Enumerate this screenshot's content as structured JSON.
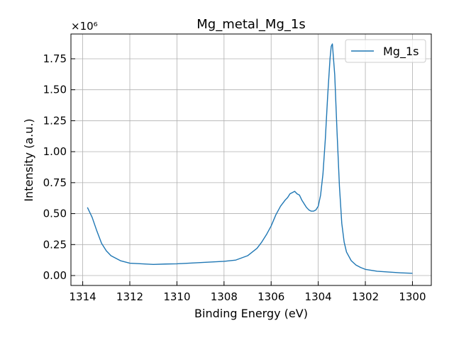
{
  "chart_data": {
    "type": "line",
    "title": "Mg_metal_Mg_1s",
    "xlabel": "Binding Energy (eV)",
    "ylabel": "Intensity (a.u.)",
    "y_multiplier_label": "×10⁶",
    "xlim": [
      1314.5,
      1299.2
    ],
    "ylim": [
      -0.08,
      1.95
    ],
    "x_reversed": true,
    "x_ticks": [
      1314,
      1312,
      1310,
      1308,
      1306,
      1304,
      1302,
      1300
    ],
    "y_ticks": [
      0.0,
      0.25,
      0.5,
      0.75,
      1.0,
      1.25,
      1.5,
      1.75
    ],
    "y_tick_labels": [
      "0.00",
      "0.25",
      "0.50",
      "0.75",
      "1.00",
      "1.25",
      "1.50",
      "1.75"
    ],
    "grid": true,
    "legend_position": "top-right",
    "series": [
      {
        "name": "Mg_1s",
        "color": "#1f77b4",
        "x": [
          1313.8,
          1313.6,
          1313.4,
          1313.2,
          1313.0,
          1312.8,
          1312.6,
          1312.4,
          1312.2,
          1312.0,
          1311.5,
          1311.0,
          1310.5,
          1310.0,
          1309.5,
          1309.0,
          1308.5,
          1308.0,
          1307.5,
          1307.0,
          1306.8,
          1306.6,
          1306.4,
          1306.2,
          1306.0,
          1305.8,
          1305.6,
          1305.4,
          1305.3,
          1305.2,
          1305.1,
          1305.0,
          1304.9,
          1304.8,
          1304.7,
          1304.6,
          1304.5,
          1304.4,
          1304.3,
          1304.2,
          1304.1,
          1304.0,
          1303.9,
          1303.8,
          1303.7,
          1303.6,
          1303.5,
          1303.45,
          1303.4,
          1303.3,
          1303.2,
          1303.1,
          1303.0,
          1302.9,
          1302.8,
          1302.6,
          1302.4,
          1302.2,
          1302.0,
          1301.5,
          1301.0,
          1300.5,
          1300.0
        ],
        "y": [
          0.55,
          0.47,
          0.36,
          0.26,
          0.2,
          0.16,
          0.14,
          0.12,
          0.11,
          0.1,
          0.095,
          0.09,
          0.093,
          0.095,
          0.1,
          0.105,
          0.11,
          0.115,
          0.125,
          0.16,
          0.19,
          0.22,
          0.27,
          0.33,
          0.4,
          0.49,
          0.56,
          0.61,
          0.63,
          0.66,
          0.67,
          0.68,
          0.66,
          0.65,
          0.61,
          0.58,
          0.55,
          0.53,
          0.52,
          0.52,
          0.53,
          0.56,
          0.65,
          0.82,
          1.1,
          1.45,
          1.75,
          1.85,
          1.87,
          1.62,
          1.15,
          0.72,
          0.42,
          0.27,
          0.19,
          0.12,
          0.085,
          0.065,
          0.05,
          0.035,
          0.028,
          0.022,
          0.018
        ]
      }
    ]
  }
}
